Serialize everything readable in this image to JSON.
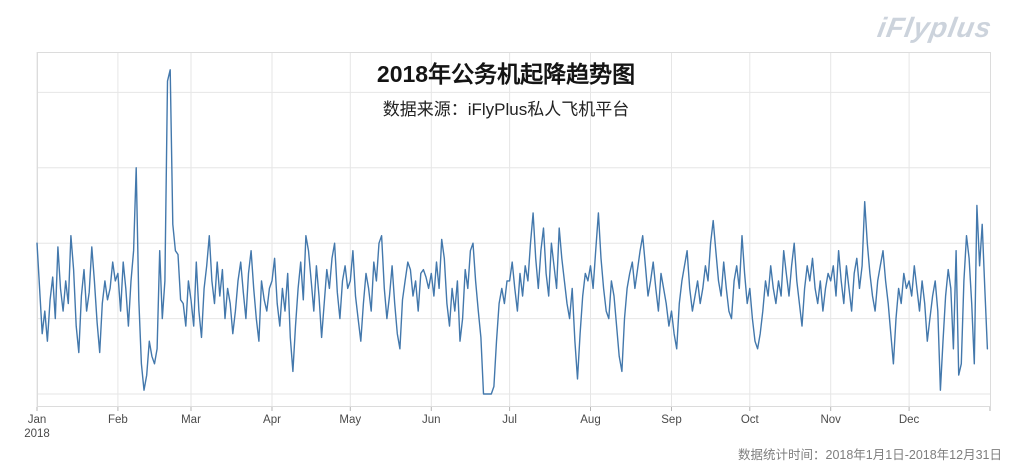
{
  "header": {
    "logo_text": "iFlyplus"
  },
  "titles": {
    "title": "2018年公务机起降趋势图",
    "subtitle": "数据来源：iFlyPlus私人飞机平台"
  },
  "footer": {
    "caption": "数据统计时间：2018年1月1日-2018年12月31日"
  },
  "chart_data": {
    "type": "line",
    "title": "2018年公务机起降趋势图",
    "subtitle": "数据来源：iFlyPlus私人飞机平台",
    "x_start": "2018-01-01",
    "x_end": "2018-12-31",
    "x_tick_labels": [
      "Jan",
      "Feb",
      "Mar",
      "Apr",
      "May",
      "Jun",
      "Jul",
      "Aug",
      "Sep",
      "Oct",
      "Nov",
      "Dec"
    ],
    "x_year_label": "2018",
    "month_day_offsets": [
      0,
      31,
      59,
      90,
      120,
      151,
      181,
      212,
      243,
      273,
      304,
      334
    ],
    "days_total": 365,
    "grid": true,
    "legend": false,
    "y_axis_labels_visible": false,
    "units": "relative daily takeoff/landing count (y-axis unlabeled; estimated at 20 per gridline)",
    "y_gridline_values": [
      0,
      20,
      40,
      60,
      80
    ],
    "ylim": [
      -4,
      90
    ],
    "line_color": "#4378ac",
    "grid_color": "#e6e6e6",
    "border_color": "#dcdcdc",
    "tick_color": "#b5b5b5",
    "tick_label_color": "#4a4a4a",
    "values": [
      40,
      28,
      16,
      22,
      14,
      25,
      31,
      20,
      39,
      28,
      22,
      30,
      24,
      42,
      33,
      18,
      11,
      26,
      33,
      22,
      27,
      39,
      30,
      19,
      11,
      24,
      30,
      25,
      28,
      35,
      30,
      32,
      22,
      35,
      28,
      18,
      30,
      38,
      60,
      25,
      8,
      1,
      5,
      14,
      10,
      8,
      12,
      38,
      20,
      30,
      83,
      86,
      45,
      38,
      37,
      25,
      24,
      18,
      30,
      25,
      18,
      35,
      22,
      15,
      28,
      34,
      42,
      30,
      24,
      35,
      26,
      33,
      20,
      28,
      24,
      16,
      22,
      30,
      35,
      27,
      20,
      32,
      38,
      28,
      20,
      14,
      30,
      25,
      22,
      28,
      30,
      36,
      24,
      18,
      28,
      22,
      32,
      15,
      6,
      18,
      28,
      35,
      25,
      42,
      38,
      30,
      22,
      34,
      26,
      15,
      24,
      33,
      28,
      36,
      40,
      27,
      20,
      30,
      34,
      28,
      30,
      38,
      26,
      20,
      14,
      24,
      32,
      28,
      22,
      35,
      30,
      40,
      42,
      28,
      20,
      26,
      34,
      24,
      16,
      12,
      25,
      30,
      35,
      33,
      26,
      30,
      22,
      32,
      33,
      31,
      28,
      32,
      26,
      35,
      28,
      41,
      36,
      24,
      18,
      28,
      22,
      30,
      14,
      20,
      33,
      28,
      38,
      40,
      30,
      22,
      15,
      0,
      0,
      0,
      0,
      2,
      14,
      24,
      28,
      24,
      30,
      30,
      35,
      28,
      22,
      32,
      26,
      34,
      30,
      40,
      48,
      36,
      28,
      38,
      44,
      32,
      26,
      40,
      34,
      28,
      44,
      36,
      30,
      24,
      20,
      28,
      14,
      4,
      16,
      26,
      32,
      30,
      34,
      28,
      38,
      48,
      36,
      28,
      22,
      20,
      30,
      26,
      18,
      10,
      6,
      20,
      28,
      32,
      35,
      28,
      33,
      38,
      42,
      34,
      26,
      30,
      35,
      28,
      22,
      32,
      28,
      24,
      18,
      22,
      16,
      12,
      24,
      30,
      34,
      38,
      28,
      22,
      26,
      30,
      24,
      28,
      34,
      30,
      40,
      46,
      38,
      30,
      26,
      35,
      28,
      22,
      20,
      30,
      34,
      28,
      42,
      32,
      24,
      28,
      20,
      14,
      12,
      16,
      22,
      30,
      26,
      34,
      28,
      24,
      30,
      26,
      38,
      32,
      26,
      34,
      40,
      30,
      24,
      18,
      28,
      34,
      30,
      36,
      28,
      24,
      30,
      22,
      28,
      32,
      30,
      34,
      26,
      38,
      30,
      24,
      34,
      28,
      22,
      32,
      36,
      28,
      34,
      51,
      40,
      32,
      26,
      22,
      30,
      34,
      38,
      30,
      24,
      16,
      8,
      20,
      28,
      24,
      32,
      28,
      30,
      26,
      34,
      28,
      22,
      30,
      24,
      14,
      20,
      26,
      30,
      22,
      1,
      14,
      26,
      33,
      28,
      12,
      38,
      5,
      8,
      30,
      42,
      36,
      24,
      8,
      50,
      34,
      45,
      28,
      12
    ]
  }
}
